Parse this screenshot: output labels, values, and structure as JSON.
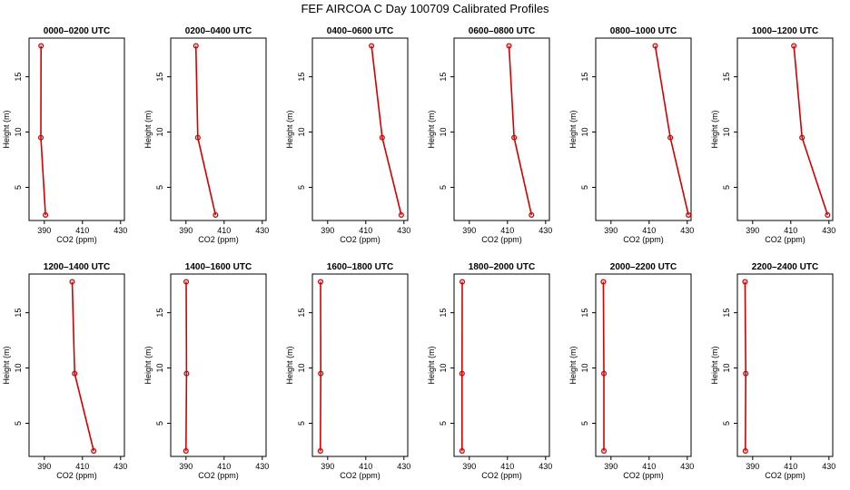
{
  "chart_data": {
    "type": "line",
    "title": "FEF AIRCOA C  Day 100709  Calibrated Profiles",
    "xlabel": "CO2 (ppm)",
    "ylabel": "Height (m)",
    "xlim": [
      382,
      432
    ],
    "ylim": [
      2,
      18.5
    ],
    "xticks": [
      390,
      410,
      430
    ],
    "yticks": [
      5,
      10,
      15
    ],
    "series_color": "#d40000",
    "panels": [
      {
        "title": "0000–0200 UTC",
        "x": [
          388.3,
          388.2,
          390.6
        ],
        "y": [
          17.8,
          9.5,
          2.5
        ]
      },
      {
        "title": "0200–0400 UTC",
        "x": [
          395.2,
          396.2,
          405.5
        ],
        "y": [
          17.8,
          9.5,
          2.5
        ]
      },
      {
        "title": "0400–0600 UTC",
        "x": [
          413.0,
          418.6,
          428.6
        ],
        "y": [
          17.8,
          9.5,
          2.5
        ]
      },
      {
        "title": "0600–0800 UTC",
        "x": [
          410.8,
          413.5,
          422.6
        ],
        "y": [
          17.8,
          9.5,
          2.5
        ]
      },
      {
        "title": "0800–1000 UTC",
        "x": [
          413.2,
          421.1,
          430.6
        ],
        "y": [
          17.8,
          9.5,
          2.5
        ]
      },
      {
        "title": "1000–1200 UTC",
        "x": [
          411.6,
          415.9,
          429.3
        ],
        "y": [
          17.8,
          9.5,
          2.5
        ]
      },
      {
        "title": "1200–1400 UTC",
        "x": [
          404.6,
          405.9,
          415.9
        ],
        "y": [
          17.8,
          9.5,
          2.5
        ]
      },
      {
        "title": "1400–1600 UTC",
        "x": [
          390.1,
          390.3,
          390.0
        ],
        "y": [
          17.8,
          9.5,
          2.5
        ]
      },
      {
        "title": "1600–1800 UTC",
        "x": [
          386.3,
          386.4,
          386.2
        ],
        "y": [
          17.8,
          9.5,
          2.5
        ]
      },
      {
        "title": "1800–2000 UTC",
        "x": [
          386.3,
          386.2,
          386.2
        ],
        "y": [
          17.8,
          9.5,
          2.5
        ]
      },
      {
        "title": "2000–2200 UTC",
        "x": [
          386.0,
          386.3,
          386.3
        ],
        "y": [
          17.8,
          9.5,
          2.5
        ]
      },
      {
        "title": "2200–2400 UTC",
        "x": [
          386.0,
          386.4,
          386.2
        ],
        "y": [
          17.8,
          9.5,
          2.5
        ]
      }
    ]
  }
}
